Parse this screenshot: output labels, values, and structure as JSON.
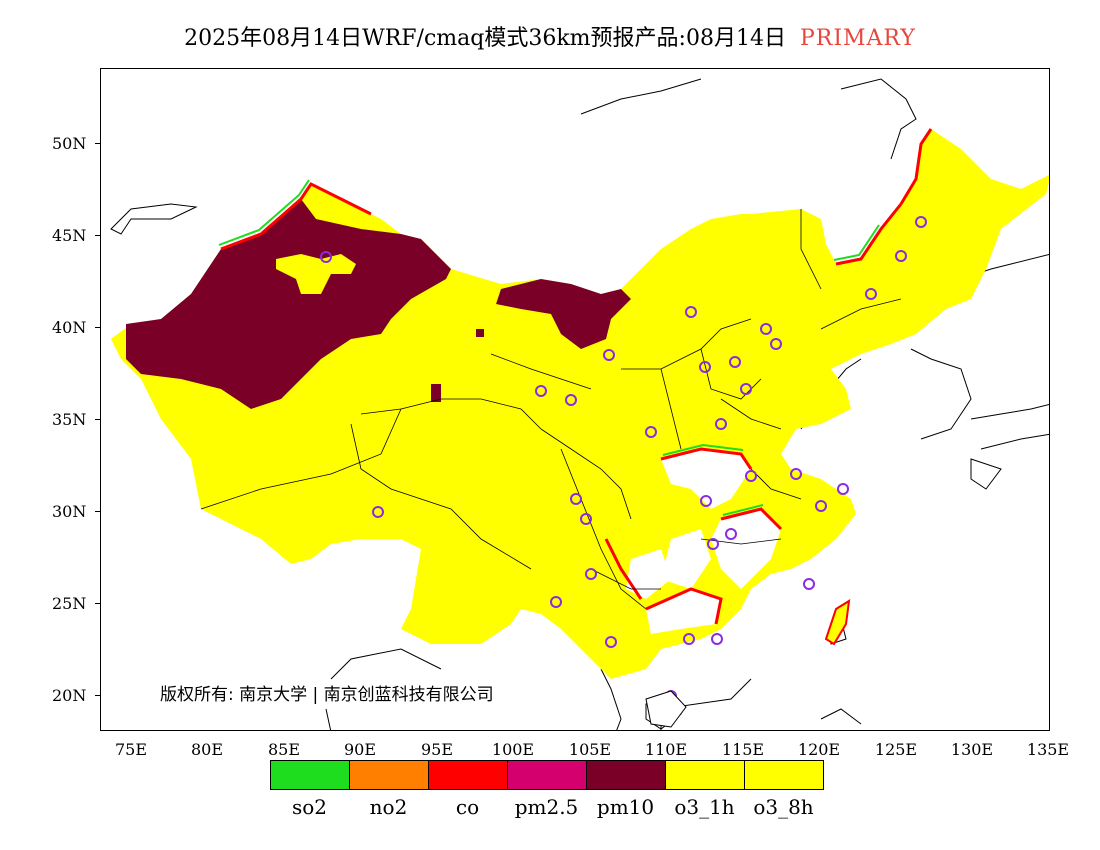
{
  "title": {
    "text": "2025年08月14日WRF/cmaq模式36km预报产品:08月14日",
    "tag": "PRIMARY",
    "tag_color": "#e8453c"
  },
  "axes": {
    "latitude_labels": [
      "50N",
      "45N",
      "40N",
      "35N",
      "30N",
      "25N",
      "20N"
    ],
    "longitude_labels": [
      "75E",
      "80E",
      "85E",
      "90E",
      "95E",
      "100E",
      "105E",
      "110E",
      "115E",
      "120E",
      "125E",
      "130E",
      "135E"
    ]
  },
  "legend": {
    "items": [
      {
        "label": "so2",
        "color": "#1edc1e"
      },
      {
        "label": "no2",
        "color": "#ff7f00"
      },
      {
        "label": "co",
        "color": "#ff0000"
      },
      {
        "label": "pm2.5",
        "color": "#d4006e"
      },
      {
        "label": "pm10",
        "color": "#7a0028"
      },
      {
        "label": "o3_1h",
        "color": "#ffff00"
      },
      {
        "label": "o3_8h",
        "color": "#ffff00"
      }
    ]
  },
  "copyright": "版权所有: 南京大学 | 南京创蓝科技有限公司",
  "colors": {
    "o3": "#ffff00",
    "pm10": "#7a0028",
    "co": "#ff0000",
    "so2": "#1edc1e",
    "pm25": "#d4006e",
    "marker": "#8a2be2"
  }
}
